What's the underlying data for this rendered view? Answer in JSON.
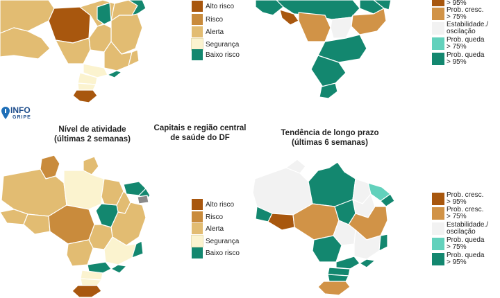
{
  "titles": {
    "nivel_line1": "Nível de atividade",
    "nivel_line2": "(últimas 2 semanas)",
    "capitais_line1": "Capitais e região central",
    "capitais_line2": "de saúde do DF",
    "tendencia_line1": "Tendência de longo prazo",
    "tendencia_line2": "(últimas 6 semanas)"
  },
  "logo": {
    "line1": "INFO",
    "line2": "GRIPE"
  },
  "activity_legend": [
    {
      "label": "Alto risco",
      "color": "#a8570e"
    },
    {
      "label": "Risco",
      "color": "#c98b3c"
    },
    {
      "label": "Alerta",
      "color": "#e2bc72"
    },
    {
      "label": "Segurança",
      "color": "#fbf3cf"
    },
    {
      "label": "Baixo risco",
      "color": "#13876f"
    }
  ],
  "trend_legend": [
    {
      "line1": "Prob. cresc.",
      "line2": "> 95%",
      "color": "#a8570e"
    },
    {
      "line1": "Prob. cresc.",
      "line2": "> 75%",
      "color": "#d19347"
    },
    {
      "line1": "Estabilidade./",
      "line2": "oscilação",
      "color": "#f2f2f2"
    },
    {
      "line1": "Prob. queda",
      "line2": "> 75%",
      "color": "#62d1bc"
    },
    {
      "line1": "Prob. queda",
      "line2": "> 95%",
      "color": "#13876f"
    }
  ],
  "top_trend_partial": {
    "first_line2": "> 95%"
  },
  "colors": {
    "alto_risco": "#a8570e",
    "risco": "#c98b3c",
    "alerta": "#e2bc72",
    "seguranca": "#fbf3cf",
    "baixo_risco": "#13876f",
    "cresc95": "#a8570e",
    "cresc75": "#d19347",
    "estab": "#f2f2f2",
    "queda75": "#62d1bc",
    "queda95": "#13876f",
    "sem_dado": "#8a8a8a"
  }
}
